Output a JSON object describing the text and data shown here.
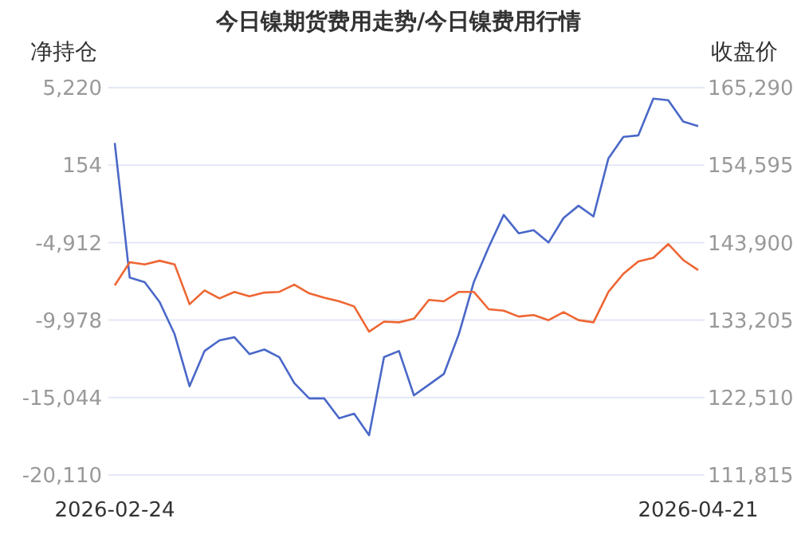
{
  "chart_data": {
    "type": "line",
    "title": "今日镍期货费用走势/今日镍费用行情",
    "ylabel": "净持仓",
    "y2label": "收盘价",
    "categories": [
      "2026-02-24",
      null,
      null,
      null,
      null,
      null,
      null,
      null,
      null,
      null,
      null,
      null,
      null,
      null,
      null,
      null,
      null,
      null,
      null,
      null,
      null,
      null,
      null,
      null,
      null,
      null,
      null,
      null,
      null,
      null,
      null,
      null,
      null,
      null,
      null,
      null,
      null,
      null,
      null,
      "2026-04-21"
    ],
    "series": [
      {
        "color": "#4a68c8",
        "values": [
          1600,
          -7200,
          -7500,
          -8800,
          -10900,
          -14300,
          -12000,
          -11300,
          -11100,
          -12200,
          -11900,
          -12400,
          -14100,
          -15100,
          -15100,
          -16400,
          -16100,
          -17500,
          -12400,
          -12000,
          -14900,
          -14200,
          -13500,
          -10900,
          -7500,
          -5200,
          -3100,
          -4300,
          -4100,
          -4900,
          -3300,
          -2500,
          -3200,
          600,
          2000,
          2100,
          4500,
          4400,
          3000,
          2700
        ]
      },
      {
        "color": "#ee6633",
        "axis": "y2",
        "values": [
          138000,
          141200,
          140900,
          141400,
          140900,
          135400,
          137300,
          136200,
          137100,
          136500,
          137000,
          137100,
          138100,
          136900,
          136300,
          135800,
          135100,
          131600,
          133000,
          132900,
          133400,
          136000,
          135800,
          137100,
          137100,
          134700,
          134500,
          133700,
          133900,
          133200,
          134300,
          133200,
          132900,
          137100,
          139600,
          141300,
          141800,
          143700,
          141500,
          140100
        ]
      }
    ],
    "ylim": [
      -20110,
      5220
    ],
    "yticks": [
      {
        "value": 5220,
        "label": "5,220"
      },
      154,
      {
        "value": -4912,
        "label": "-4,912"
      },
      {
        "value": -9978,
        "label": "-9,978"
      },
      {
        "value": -15044,
        "label": "-15,044"
      },
      {
        "value": -20110,
        "label": "-20,110"
      }
    ],
    "y2lim": [
      111815,
      165290
    ],
    "y2ticks": [
      {
        "value": 165290,
        "label": "165,290"
      },
      {
        "value": 154595,
        "label": "154,595"
      },
      {
        "value": 143900,
        "label": "143,900"
      },
      {
        "value": 133205,
        "label": "133,205"
      },
      {
        "value": 122510,
        "label": "122,510"
      },
      {
        "value": 111815,
        "label": "111,815"
      }
    ],
    "grid": "y",
    "marker": "none",
    "line_style": "solid"
  }
}
